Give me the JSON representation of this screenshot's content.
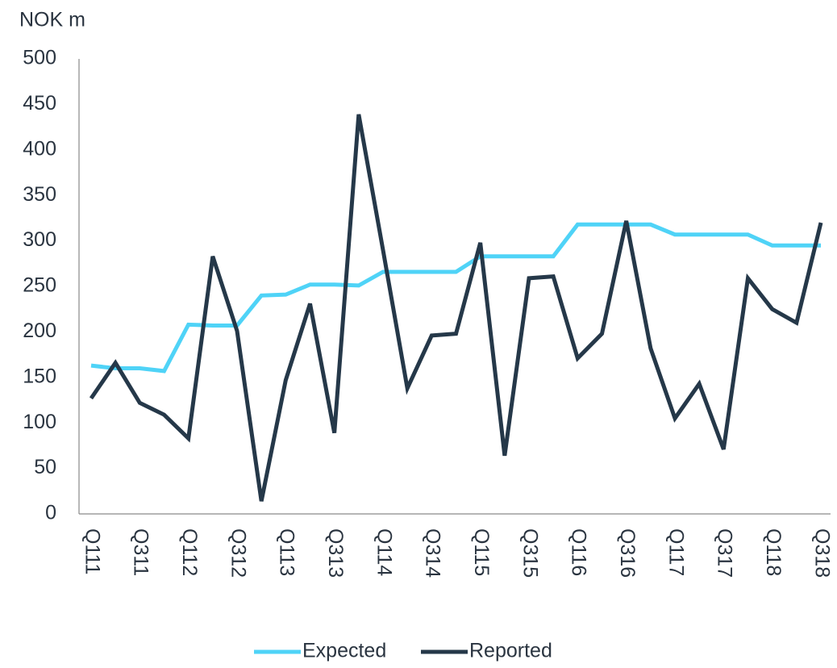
{
  "chart_data": {
    "type": "line",
    "y_label": "NOK m",
    "categories": [
      "Q111",
      null,
      "Q311",
      null,
      "Q112",
      null,
      "Q312",
      null,
      "Q113",
      null,
      "Q313",
      null,
      "Q114",
      null,
      "Q314",
      null,
      "Q115",
      null,
      "Q315",
      null,
      "Q116",
      null,
      "Q316",
      null,
      "Q117",
      null,
      "Q317",
      null,
      "Q118",
      null,
      "Q318"
    ],
    "series": [
      {
        "name": "Expected",
        "color": "#4fd3f7",
        "values": [
          163,
          160,
          160,
          157,
          208,
          207,
          207,
          240,
          241,
          252,
          252,
          251,
          266,
          266,
          266,
          266,
          283,
          283,
          283,
          283,
          318,
          318,
          318,
          318,
          307,
          307,
          307,
          307,
          295,
          295,
          295
        ]
      },
      {
        "name": "Reported",
        "color": "#253849",
        "values": [
          127,
          166,
          122,
          109,
          83,
          283,
          201,
          14,
          147,
          231,
          89,
          439,
          290,
          138,
          196,
          198,
          298,
          64,
          259,
          261,
          171,
          198,
          322,
          182,
          105,
          143,
          71,
          259,
          225,
          210,
          320
        ]
      }
    ],
    "ylim": [
      0,
      500
    ],
    "yticks": [
      0,
      50,
      100,
      150,
      200,
      250,
      300,
      350,
      400,
      450,
      500
    ],
    "grid": false,
    "legend": "bottom"
  }
}
